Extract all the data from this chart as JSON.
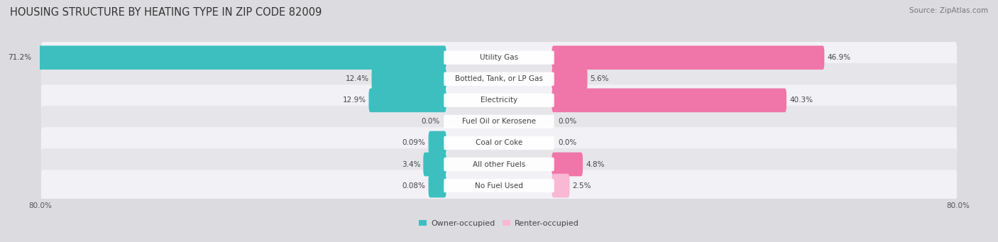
{
  "title": "HOUSING STRUCTURE BY HEATING TYPE IN ZIP CODE 82009",
  "source": "Source: ZipAtlas.com",
  "categories": [
    "Utility Gas",
    "Bottled, Tank, or LP Gas",
    "Electricity",
    "Fuel Oil or Kerosene",
    "Coal or Coke",
    "All other Fuels",
    "No Fuel Used"
  ],
  "owner_values": [
    71.2,
    12.4,
    12.9,
    0.0,
    0.09,
    3.4,
    0.08
  ],
  "renter_values": [
    46.9,
    5.6,
    40.3,
    0.0,
    0.0,
    4.8,
    2.5
  ],
  "owner_labels": [
    "71.2%",
    "12.4%",
    "12.9%",
    "0.0%",
    "0.09%",
    "3.4%",
    "0.08%"
  ],
  "renter_labels": [
    "46.9%",
    "5.6%",
    "40.3%",
    "0.0%",
    "0.0%",
    "4.8%",
    "2.5%"
  ],
  "owner_color": "#3DBFBF",
  "renter_color": "#F075A8",
  "renter_color_light": "#F9B8D3",
  "row_bg_color_light": "#F2F2F6",
  "row_bg_color_dark": "#E6E6EA",
  "outer_bg_color": "#DCDCE0",
  "max_scale": 80.0,
  "title_fontsize": 10.5,
  "source_fontsize": 7.5,
  "label_fontsize": 7.5,
  "bar_label_fontsize": 7.5,
  "legend_fontsize": 8,
  "axis_label_fontsize": 7.5
}
